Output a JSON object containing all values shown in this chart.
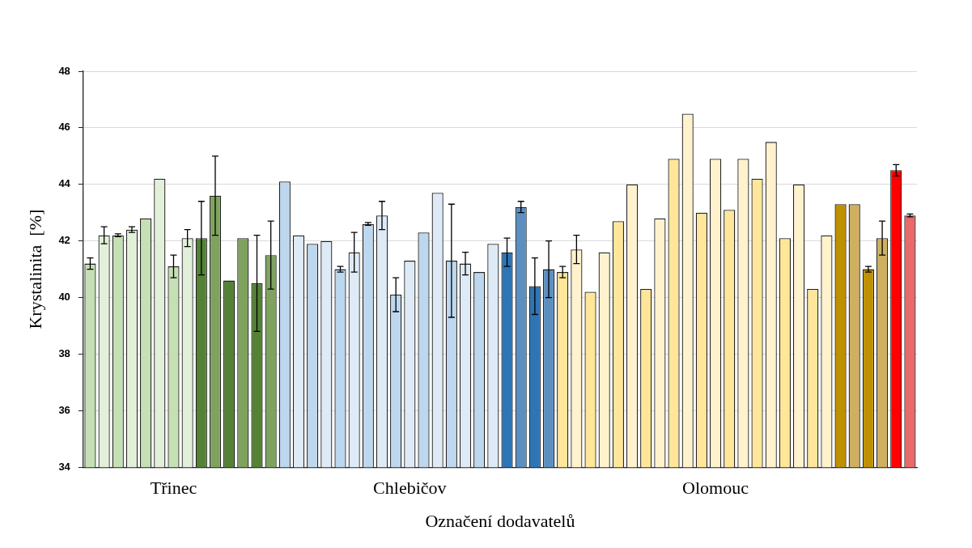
{
  "chart_data": {
    "type": "bar",
    "xlabel": "Označení dodavatelů",
    "ylabel": "Krystalinita  [%]",
    "categories": [
      null,
      null,
      null,
      null,
      null,
      null,
      "Třinec",
      null,
      null,
      null,
      null,
      null,
      null,
      null,
      null,
      null,
      null,
      null,
      null,
      null,
      null,
      null,
      null,
      "Chlebičov",
      null,
      null,
      null,
      null,
      null,
      null,
      null,
      null,
      null,
      null,
      null,
      null,
      null,
      null,
      null,
      null,
      null,
      null,
      null,
      null,
      null,
      "Olomouc",
      null,
      null,
      null,
      null,
      null,
      null,
      null,
      null,
      null,
      null,
      null,
      null,
      null,
      null
    ],
    "values": [
      41.2,
      42.2,
      42.2,
      42.4,
      42.8,
      44.2,
      41.1,
      42.1,
      42.1,
      43.6,
      40.6,
      42.1,
      40.5,
      41.5,
      44.1,
      42.2,
      41.9,
      42.0,
      41.0,
      41.6,
      42.6,
      42.9,
      40.1,
      41.3,
      42.3,
      43.7,
      41.3,
      41.2,
      40.9,
      41.9,
      41.6,
      43.2,
      40.4,
      41.0,
      40.9,
      41.7,
      40.2,
      41.6,
      42.7,
      44.0,
      40.3,
      42.8,
      44.9,
      46.5,
      43.0,
      44.9,
      43.1,
      44.9,
      44.2,
      45.5,
      42.1,
      44.0,
      40.3,
      42.2,
      43.3,
      43.3,
      41.0,
      42.1,
      44.5,
      42.9
    ],
    "errors": [
      0.2,
      0.3,
      0.05,
      0.1,
      null,
      null,
      0.4,
      0.3,
      1.3,
      1.4,
      null,
      null,
      1.7,
      1.2,
      null,
      null,
      null,
      null,
      0.1,
      0.7,
      0.05,
      0.5,
      0.6,
      null,
      null,
      null,
      2.0,
      0.4,
      null,
      null,
      0.5,
      0.2,
      1.0,
      1.0,
      0.2,
      0.5,
      null,
      null,
      null,
      null,
      null,
      null,
      null,
      null,
      null,
      null,
      null,
      null,
      null,
      null,
      null,
      null,
      null,
      null,
      null,
      null,
      0.1,
      0.6,
      0.2,
      0.05
    ],
    "colors": [
      "#c5e0b4",
      "#e2f0d9",
      "#c5e0b4",
      "#e2f0d9",
      "#c5e0b4",
      "#e2f0d9",
      "#c5e0b4",
      "#e2f0d9",
      "#548235",
      "#7fa35f",
      "#548235",
      "#7fa35f",
      "#548235",
      "#7fa35f",
      "#bdd7ee",
      "#deebf7",
      "#bdd7ee",
      "#deebf7",
      "#bdd7ee",
      "#deebf7",
      "#bdd7ee",
      "#deebf7",
      "#bdd7ee",
      "#deebf7",
      "#bdd7ee",
      "#deebf7",
      "#bdd7ee",
      "#deebf7",
      "#bdd7ee",
      "#deebf7",
      "#2e75b6",
      "#5b8fc0",
      "#2e75b6",
      "#5b8fc0",
      "#ffe699",
      "#fff2cc",
      "#ffe699",
      "#fff2cc",
      "#ffe699",
      "#fff2cc",
      "#ffe699",
      "#fff2cc",
      "#ffe699",
      "#fff2cc",
      "#ffe699",
      "#fff2cc",
      "#ffe699",
      "#fff2cc",
      "#ffe699",
      "#fff2cc",
      "#ffe699",
      "#fff2cc",
      "#ffe699",
      "#fff2cc",
      "#bf9000",
      "#cfb060",
      "#bf9000",
      "#cfb060",
      "#ff0000",
      "#e86a6a"
    ],
    "ylim": [
      34,
      48
    ],
    "yticks": [
      34,
      36,
      38,
      40,
      42,
      44,
      46,
      48
    ],
    "grid": "y",
    "legend": false
  }
}
